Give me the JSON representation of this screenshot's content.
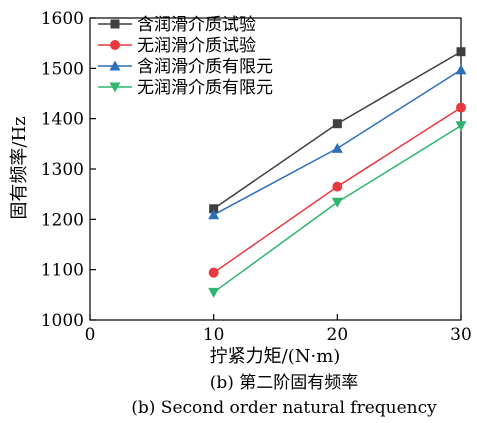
{
  "chart_data": {
    "type": "line",
    "x": [
      10,
      20,
      30
    ],
    "xlim": [
      0,
      30
    ],
    "ylim": [
      1000,
      1600
    ],
    "xticks": [
      "0",
      "10",
      "20",
      "30"
    ],
    "yticks": [
      "1000",
      "1100",
      "1200",
      "1300",
      "1400",
      "1500",
      "1600"
    ],
    "xlabel": "拧紧力矩/(N·m)",
    "ylabel": "固有频率/Hz",
    "legend_position": "top-left",
    "grid": false,
    "series": [
      {
        "name": "含润滑介质试验",
        "values": [
          1221,
          1390,
          1533
        ],
        "color": "#3f3f3f",
        "marker": "square"
      },
      {
        "name": "无润滑介质试验",
        "values": [
          1094,
          1265,
          1422
        ],
        "color": "#e8393f",
        "marker": "circle"
      },
      {
        "name": "含润滑介质有限元",
        "values": [
          1209,
          1341,
          1497
        ],
        "color": "#2e6fbc",
        "marker": "triangle-up"
      },
      {
        "name": "无润滑介质有限元",
        "values": [
          1055,
          1234,
          1386
        ],
        "color": "#2fb56e",
        "marker": "triangle-down"
      }
    ]
  },
  "caption": {
    "cn": "(b) 第二阶固有频率",
    "en": "(b) Second order natural frequency"
  }
}
